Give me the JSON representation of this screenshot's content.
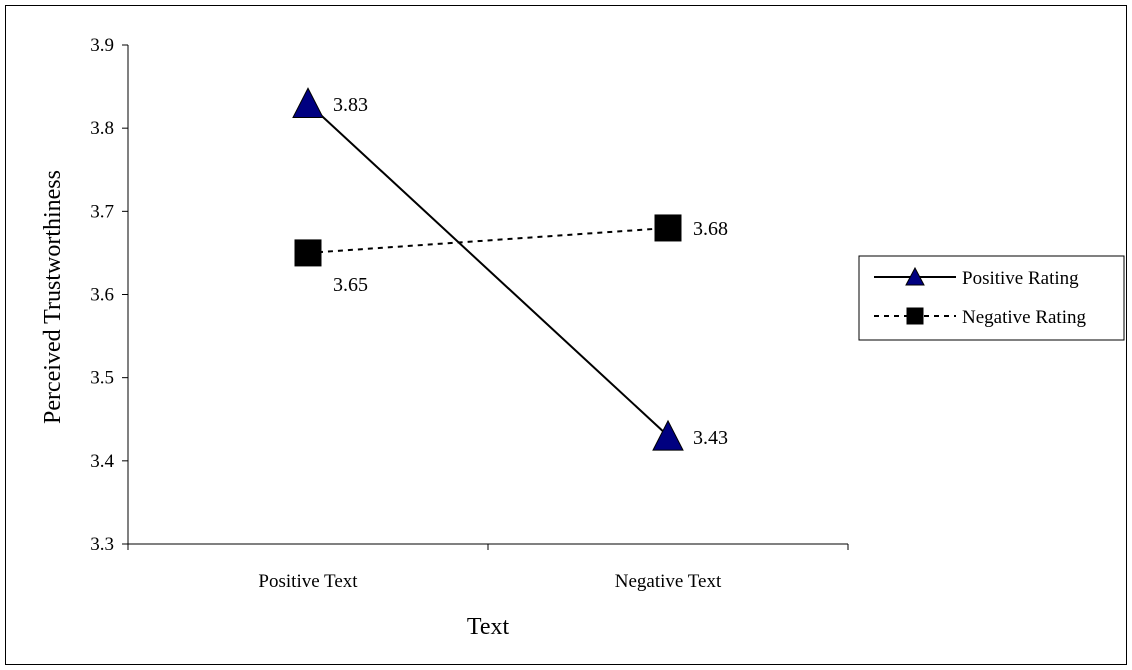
{
  "chart_data": {
    "type": "line",
    "title": "",
    "xlabel": "Text",
    "ylabel": "Perceived Trustworthiness",
    "categories": [
      "Positive Text",
      "Negative Text"
    ],
    "ylim": [
      3.3,
      3.9
    ],
    "yticks": [
      "3.3",
      "3.4",
      "3.5",
      "3.6",
      "3.7",
      "3.8",
      "3.9"
    ],
    "grid": false,
    "legend_position": "right",
    "series": [
      {
        "name": "Positive Rating",
        "values": [
          3.83,
          3.43
        ],
        "value_labels": [
          "3.83",
          "3.43"
        ],
        "marker": "triangle",
        "line_style": "solid",
        "marker_color": "#000080"
      },
      {
        "name": "Negative Rating",
        "values": [
          3.65,
          3.68
        ],
        "value_labels": [
          "3.65",
          "3.68"
        ],
        "marker": "square",
        "line_style": "dotted",
        "marker_color": "#000000"
      }
    ]
  }
}
